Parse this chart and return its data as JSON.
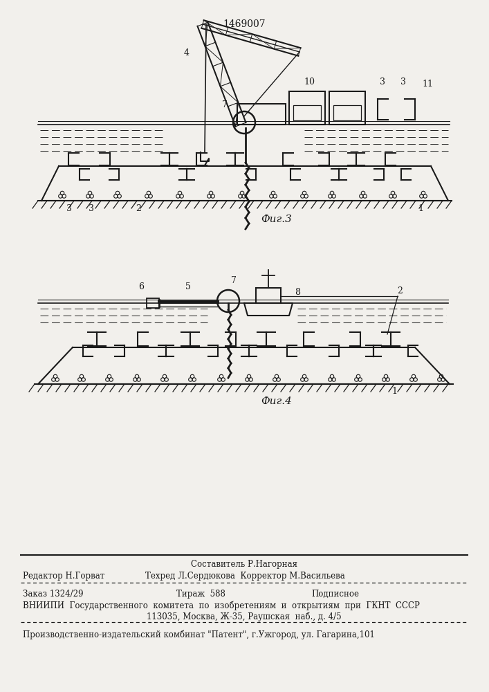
{
  "patent_number": "1469007",
  "fig3_caption": "Фиг.3",
  "fig4_caption": "Фиг.4",
  "background_color": "#f2f0ec",
  "line_color": "#1a1a1a",
  "footer_sostavitel": "Составитель Р.Нагорная",
  "footer_redaktor": "Редактор Н.Горват",
  "footer_tehred": "Техред Л.Сердюкова  Корректор М.Васильева",
  "footer_order": "Заказ 1324/29",
  "footer_tirazh": "Тираж  588",
  "footer_podp": "Подписное",
  "footer_vniip": "ВНИИПИ  Государственного  комитета  по  изобретениям  и  открытиям  при  ГКНТ  СССР",
  "footer_addr": "113035, Москва, Ж-35, Раушская  наб., д. 4/5",
  "footer_patent": "Производственно-издательский комбинат \"Патент\", г.Ужгород, ул. Гагарина,101"
}
